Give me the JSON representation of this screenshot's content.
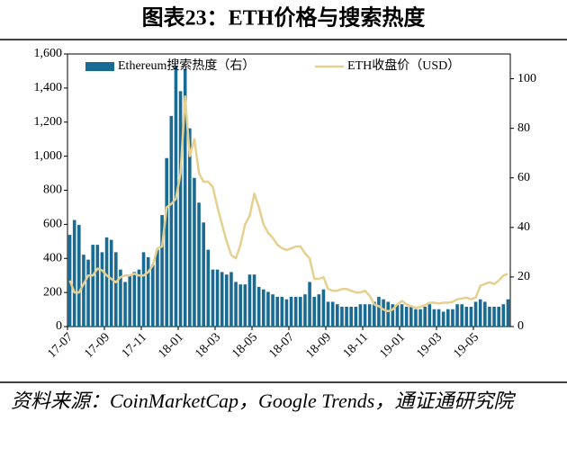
{
  "chart_data": {
    "type": "bar_line",
    "title": "图表23：ETH价格与搜索热度",
    "source": "资料来源：CoinMarketCap，Google Trends，通证通研究院",
    "categories": [
      "17-07",
      null,
      null,
      null,
      null,
      null,
      null,
      null,
      "17-09",
      null,
      null,
      null,
      null,
      null,
      null,
      null,
      "17-11",
      null,
      null,
      null,
      null,
      null,
      null,
      null,
      "18-01",
      null,
      null,
      null,
      null,
      null,
      null,
      null,
      "18-03",
      null,
      null,
      null,
      null,
      null,
      null,
      null,
      "18-05",
      null,
      null,
      null,
      null,
      null,
      null,
      null,
      "18-07",
      null,
      null,
      null,
      null,
      null,
      null,
      null,
      "18-09",
      null,
      null,
      null,
      null,
      null,
      null,
      null,
      "18-11",
      null,
      null,
      null,
      null,
      null,
      null,
      null,
      "19-01",
      null,
      null,
      null,
      null,
      null,
      null,
      null,
      "19-03",
      null,
      null,
      null,
      null,
      null,
      null,
      null,
      "19-05",
      null,
      null,
      null,
      null,
      null,
      null,
      null
    ],
    "series": [
      {
        "name": "Ethereum搜索热度（右）",
        "color": "#1a6b93",
        "axis": "y2",
        "kind": "bar",
        "values": [
          37,
          43,
          41,
          29,
          27,
          33,
          33,
          30,
          36,
          35,
          30,
          23,
          18,
          21,
          22,
          23,
          30,
          28,
          25,
          31,
          45,
          68,
          85,
          105,
          95,
          104,
          80,
          60,
          50,
          42,
          31,
          23,
          23,
          22,
          21,
          22,
          18,
          17,
          17,
          21,
          21,
          16,
          15,
          14,
          13,
          12,
          12,
          11,
          12,
          12,
          12,
          13,
          18,
          12,
          13,
          15,
          10,
          10,
          9,
          8,
          8,
          8,
          8,
          9,
          9,
          9,
          10,
          12,
          11,
          10,
          9,
          9,
          9,
          8,
          8,
          7,
          7,
          8,
          9,
          7,
          7,
          6,
          7,
          7,
          9,
          9,
          8,
          8,
          10,
          11,
          10,
          8,
          8,
          8,
          9,
          11
        ]
      },
      {
        "name": "ETH收盘价（USD）",
        "color": "#e6d08f",
        "axis": "y",
        "kind": "line",
        "values": [
          270,
          200,
          200,
          250,
          300,
          300,
          340,
          330,
          300,
          280,
          260,
          290,
          300,
          300,
          310,
          300,
          300,
          320,
          360,
          460,
          470,
          700,
          720,
          750,
          900,
          1350,
          1000,
          1100,
          900,
          850,
          850,
          820,
          700,
          600,
          500,
          420,
          400,
          480,
          600,
          650,
          780,
          700,
          600,
          550,
          520,
          480,
          460,
          450,
          460,
          470,
          470,
          430,
          400,
          280,
          280,
          290,
          220,
          210,
          210,
          220,
          220,
          210,
          200,
          200,
          210,
          180,
          130,
          120,
          100,
          90,
          100,
          130,
          150,
          130,
          120,
          110,
          115,
          125,
          140,
          140,
          135,
          140,
          140,
          145,
          160,
          165,
          170,
          160,
          170,
          240,
          250,
          260,
          250,
          270,
          300,
          310
        ]
      }
    ],
    "ylim": [
      0,
      1600
    ],
    "yticks": [
      0,
      200,
      400,
      600,
      800,
      {
        "value": 1000,
        "label": "1,000"
      },
      {
        "value": 1200,
        "label": "1,200"
      },
      {
        "value": 1400,
        "label": "1,400"
      },
      {
        "value": 1600,
        "label": "1,600"
      }
    ],
    "y2lim": [
      0,
      110
    ],
    "y2ticks": [
      0,
      20,
      40,
      60,
      80,
      100
    ]
  }
}
